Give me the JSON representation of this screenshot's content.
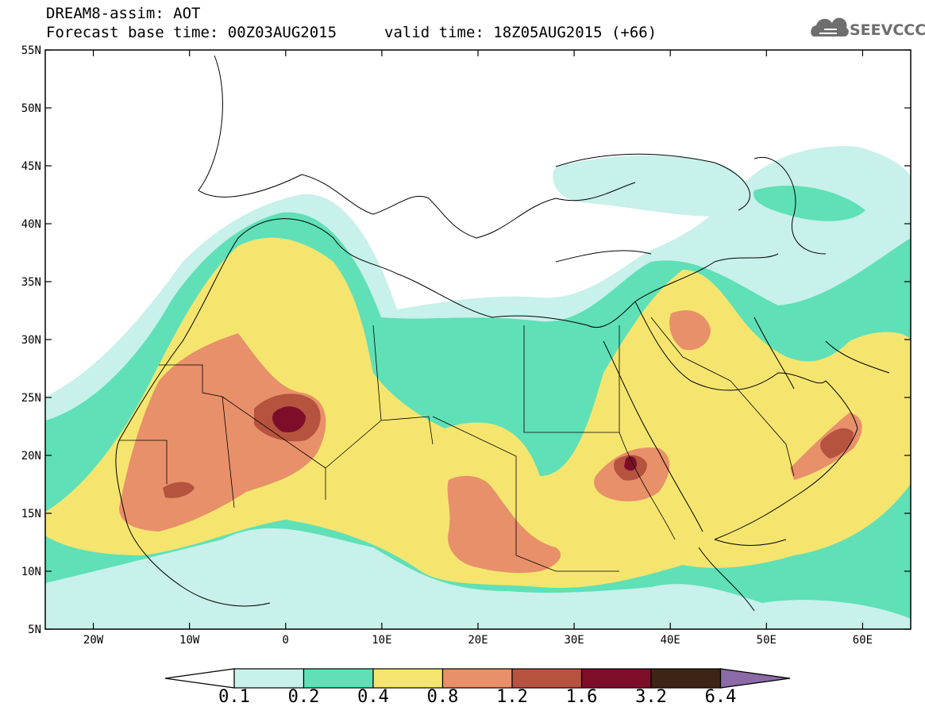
{
  "header": {
    "title": "DREAM8-assim: AOT",
    "base_time": "Forecast base time: 00Z03AUG2015",
    "valid_time": "valid time: 18Z05AUG2015 (+66)",
    "logo_text": "SEEVCCC",
    "logo_color": "#6e6e6e"
  },
  "map": {
    "lon_range": [
      -25,
      65
    ],
    "lat_range": [
      5,
      55
    ],
    "lat_ticks": [
      "55N",
      "50N",
      "45N",
      "40N",
      "35N",
      "30N",
      "25N",
      "20N",
      "15N",
      "10N",
      "5N"
    ],
    "lon_ticks": [
      "20W",
      "10W",
      "0",
      "10E",
      "20E",
      "30E",
      "40E",
      "50E",
      "60E"
    ]
  },
  "colorbar": {
    "labels": [
      "0.1",
      "0.2",
      "0.4",
      "0.8",
      "1.2",
      "1.6",
      "3.2",
      "6.4"
    ],
    "colors": [
      "#c7f1ea",
      "#5fe0b7",
      "#f5e56f",
      "#e8906a",
      "#b5533f",
      "#7c0e2a",
      "#3d2414",
      "#8b6aa6"
    ]
  }
}
